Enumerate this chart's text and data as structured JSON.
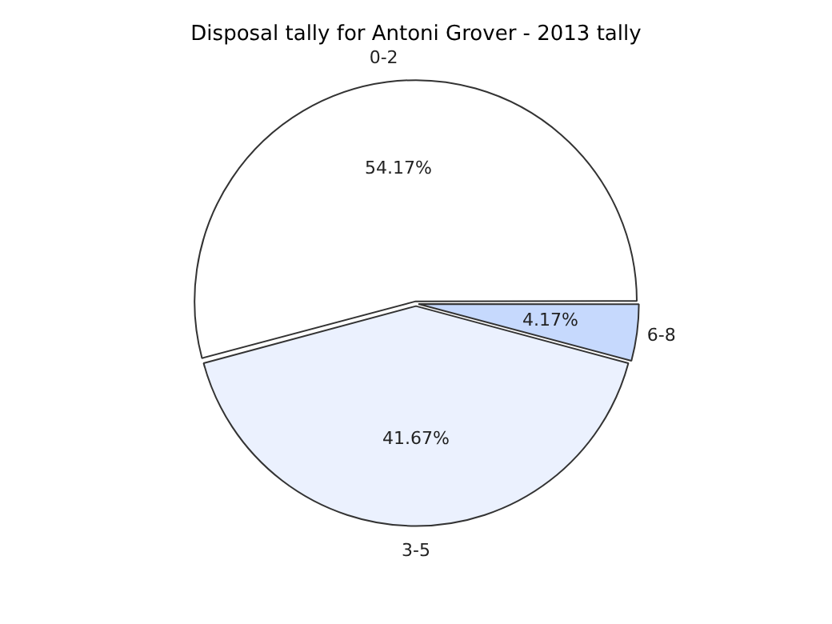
{
  "chart_data": {
    "type": "pie",
    "title": "Disposal tally for Antoni Grover - 2013 tally",
    "categories": [
      "0-2",
      "3-5",
      "6-8"
    ],
    "values": [
      54.17,
      41.67,
      4.17
    ],
    "value_labels": [
      "54.17%",
      "41.67%",
      "4.17%"
    ],
    "colors": [
      "#ffffff",
      "#ebf1fe",
      "#c6d9fd"
    ],
    "legend": false
  }
}
